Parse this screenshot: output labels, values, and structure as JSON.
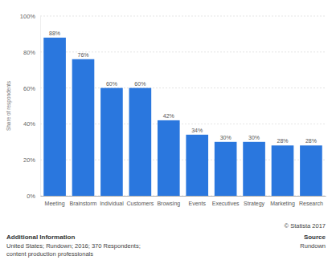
{
  "chart_data": {
    "type": "bar",
    "y_label": "Share of respondents",
    "categories": [
      "Meeting",
      "Brainstorm",
      "Individual",
      "Customers",
      "Browsing",
      "Events",
      "Executives",
      "Strategy",
      "Marketing",
      "Research"
    ],
    "values": [
      88,
      76,
      60,
      60,
      42,
      34,
      30,
      30,
      28,
      28
    ],
    "value_labels": [
      "88%",
      "76%",
      "60%",
      "60%",
      "42%",
      "34%",
      "30%",
      "30%",
      "28%",
      "28%"
    ],
    "color": "#2a77de",
    "ylim": [
      0,
      100
    ],
    "yticks": [
      {
        "value": 0,
        "label": "0%"
      },
      {
        "value": 20,
        "label": "20%"
      },
      {
        "value": 40,
        "label": "40%"
      },
      {
        "value": 60,
        "label": "60%"
      },
      {
        "value": 80,
        "label": "80%"
      },
      {
        "value": 100,
        "label": "100%"
      }
    ],
    "grid": true,
    "data_labels": true
  },
  "footer": {
    "copyright": "© Statista 2017",
    "info_title": "Additional Information",
    "info_lines": [
      "United States; Rundown; 2016; 370 Respondents;",
      "content production professionals"
    ],
    "source_title": "Source",
    "source": "Rundown"
  }
}
